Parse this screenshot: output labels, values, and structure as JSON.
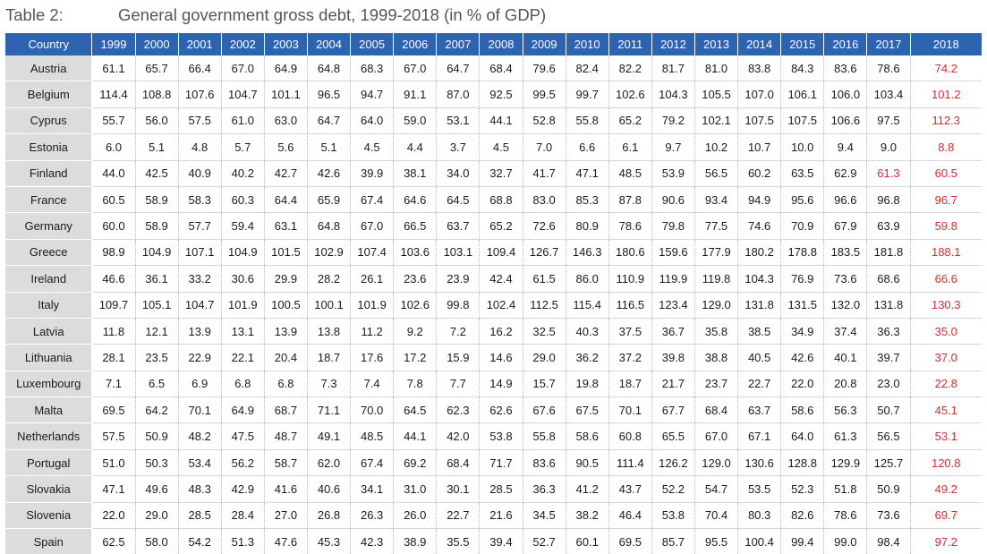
{
  "table_label": "Table 2:",
  "table_title": "General government gross debt, 1999-2018 (in % of GDP)",
  "columns": [
    "Country",
    "1999",
    "2000",
    "2001",
    "2002",
    "2003",
    "2004",
    "2005",
    "2006",
    "2007",
    "2008",
    "2009",
    "2010",
    "2011",
    "2012",
    "2013",
    "2014",
    "2015",
    "2016",
    "2017",
    "2018"
  ],
  "highlight_color": "#e0282e",
  "header_color": "#2d63b0",
  "rows": [
    {
      "country": "Austria",
      "values": [
        "61.1",
        "65.7",
        "66.4",
        "67.0",
        "64.9",
        "64.8",
        "68.3",
        "67.0",
        "64.7",
        "68.4",
        "79.6",
        "82.4",
        "82.2",
        "81.7",
        "81.0",
        "83.8",
        "84.3",
        "83.6",
        "78.6",
        "74.2"
      ],
      "red": [
        19
      ]
    },
    {
      "country": "Belgium",
      "values": [
        "114.4",
        "108.8",
        "107.6",
        "104.7",
        "101.1",
        "96.5",
        "94.7",
        "91.1",
        "87.0",
        "92.5",
        "99.5",
        "99.7",
        "102.6",
        "104.3",
        "105.5",
        "107.0",
        "106.1",
        "106.0",
        "103.4",
        "101.2"
      ],
      "red": [
        19
      ]
    },
    {
      "country": "Cyprus",
      "values": [
        "55.7",
        "56.0",
        "57.5",
        "61.0",
        "63.0",
        "64.7",
        "64.0",
        "59.0",
        "53.1",
        "44.1",
        "52.8",
        "55.8",
        "65.2",
        "79.2",
        "102.1",
        "107.5",
        "107.5",
        "106.6",
        "97.5",
        "112.3"
      ],
      "red": [
        19
      ]
    },
    {
      "country": "Estonia",
      "values": [
        "6.0",
        "5.1",
        "4.8",
        "5.7",
        "5.6",
        "5.1",
        "4.5",
        "4.4",
        "3.7",
        "4.5",
        "7.0",
        "6.6",
        "6.1",
        "9.7",
        "10.2",
        "10.7",
        "10.0",
        "9.4",
        "9.0",
        "8.8"
      ],
      "red": [
        19
      ]
    },
    {
      "country": "Finland",
      "values": [
        "44.0",
        "42.5",
        "40.9",
        "40.2",
        "42.7",
        "42.6",
        "39.9",
        "38.1",
        "34.0",
        "32.7",
        "41.7",
        "47.1",
        "48.5",
        "53.9",
        "56.5",
        "60.2",
        "63.5",
        "62.9",
        "61.3",
        "60.5"
      ],
      "red": [
        18,
        19
      ]
    },
    {
      "country": "France",
      "values": [
        "60.5",
        "58.9",
        "58.3",
        "60.3",
        "64.4",
        "65.9",
        "67.4",
        "64.6",
        "64.5",
        "68.8",
        "83.0",
        "85.3",
        "87.8",
        "90.6",
        "93.4",
        "94.9",
        "95.6",
        "96.6",
        "96.8",
        "96.7"
      ],
      "red": [
        19
      ]
    },
    {
      "country": "Germany",
      "values": [
        "60.0",
        "58.9",
        "57.7",
        "59.4",
        "63.1",
        "64.8",
        "67.0",
        "66.5",
        "63.7",
        "65.2",
        "72.6",
        "80.9",
        "78.6",
        "79.8",
        "77.5",
        "74.6",
        "70.9",
        "67.9",
        "63.9",
        "59.8"
      ],
      "red": [
        19
      ]
    },
    {
      "country": "Greece",
      "values": [
        "98.9",
        "104.9",
        "107.1",
        "104.9",
        "101.5",
        "102.9",
        "107.4",
        "103.6",
        "103.1",
        "109.4",
        "126.7",
        "146.3",
        "180.6",
        "159.6",
        "177.9",
        "180.2",
        "178.8",
        "183.5",
        "181.8",
        "188.1"
      ],
      "red": [
        19
      ]
    },
    {
      "country": "Ireland",
      "values": [
        "46.6",
        "36.1",
        "33.2",
        "30.6",
        "29.9",
        "28.2",
        "26.1",
        "23.6",
        "23.9",
        "42.4",
        "61.5",
        "86.0",
        "110.9",
        "119.9",
        "119.8",
        "104.3",
        "76.9",
        "73.6",
        "68.6",
        "66.6"
      ],
      "red": [
        19
      ]
    },
    {
      "country": "Italy",
      "values": [
        "109.7",
        "105.1",
        "104.7",
        "101.9",
        "100.5",
        "100.1",
        "101.9",
        "102.6",
        "99.8",
        "102.4",
        "112.5",
        "115.4",
        "116.5",
        "123.4",
        "129.0",
        "131.8",
        "131.5",
        "132.0",
        "131.8",
        "130.3"
      ],
      "red": [
        19
      ]
    },
    {
      "country": "Latvia",
      "values": [
        "11.8",
        "12.1",
        "13.9",
        "13.1",
        "13.9",
        "13.8",
        "11.2",
        "9.2",
        "7.2",
        "16.2",
        "32.5",
        "40.3",
        "37.5",
        "36.7",
        "35.8",
        "38.5",
        "34.9",
        "37.4",
        "36.3",
        "35.0"
      ],
      "red": [
        19
      ]
    },
    {
      "country": "Lithuania",
      "values": [
        "28.1",
        "23.5",
        "22.9",
        "22.1",
        "20.4",
        "18.7",
        "17.6",
        "17.2",
        "15.9",
        "14.6",
        "29.0",
        "36.2",
        "37.2",
        "39.8",
        "38.8",
        "40.5",
        "42.6",
        "40.1",
        "39.7",
        "37.0"
      ],
      "red": [
        19
      ]
    },
    {
      "country": "Luxembourg",
      "values": [
        "7.1",
        "6.5",
        "6.9",
        "6.8",
        "6.8",
        "7.3",
        "7.4",
        "7.8",
        "7.7",
        "14.9",
        "15.7",
        "19.8",
        "18.7",
        "21.7",
        "23.7",
        "22.7",
        "22.0",
        "20.8",
        "23.0",
        "22.8"
      ],
      "red": [
        19
      ]
    },
    {
      "country": "Malta",
      "values": [
        "69.5",
        "64.2",
        "70.1",
        "64.9",
        "68.7",
        "71.1",
        "70.0",
        "64.5",
        "62.3",
        "62.6",
        "67.6",
        "67.5",
        "70.1",
        "67.7",
        "68.4",
        "63.7",
        "58.6",
        "56.3",
        "50.7",
        "45.1"
      ],
      "red": [
        19
      ]
    },
    {
      "country": "Netherlands",
      "values": [
        "57.5",
        "50.9",
        "48.2",
        "47.5",
        "48.7",
        "49.1",
        "48.5",
        "44.1",
        "42.0",
        "53.8",
        "55.8",
        "58.6",
        "60.8",
        "65.5",
        "67.0",
        "67.1",
        "64.0",
        "61.3",
        "56.5",
        "53.1"
      ],
      "red": [
        19
      ]
    },
    {
      "country": "Portugal",
      "values": [
        "51.0",
        "50.3",
        "53.4",
        "56.2",
        "58.7",
        "62.0",
        "67.4",
        "69.2",
        "68.4",
        "71.7",
        "83.6",
        "90.5",
        "111.4",
        "126.2",
        "129.0",
        "130.6",
        "128.8",
        "129.9",
        "125.7",
        "120.8"
      ],
      "red": [
        19
      ]
    },
    {
      "country": "Slovakia",
      "values": [
        "47.1",
        "49.6",
        "48.3",
        "42.9",
        "41.6",
        "40.6",
        "34.1",
        "31.0",
        "30.1",
        "28.5",
        "36.3",
        "41.2",
        "43.7",
        "52.2",
        "54.7",
        "53.5",
        "52.3",
        "51.8",
        "50.9",
        "49.2"
      ],
      "red": [
        19
      ]
    },
    {
      "country": "Slovenia",
      "values": [
        "22.0",
        "29.0",
        "28.5",
        "28.4",
        "27.0",
        "26.8",
        "26.3",
        "26.0",
        "22.7",
        "21.6",
        "34.5",
        "38.2",
        "46.4",
        "53.8",
        "70.4",
        "80.3",
        "82.6",
        "78.6",
        "73.6",
        "69.7"
      ],
      "red": [
        19
      ]
    },
    {
      "country": "Spain",
      "values": [
        "62.5",
        "58.0",
        "54.2",
        "51.3",
        "47.6",
        "45.3",
        "42.3",
        "38.9",
        "35.5",
        "39.4",
        "52.7",
        "60.1",
        "69.5",
        "85.7",
        "95.5",
        "100.4",
        "99.4",
        "99.0",
        "98.4",
        "97.2"
      ],
      "red": [
        19
      ]
    }
  ]
}
